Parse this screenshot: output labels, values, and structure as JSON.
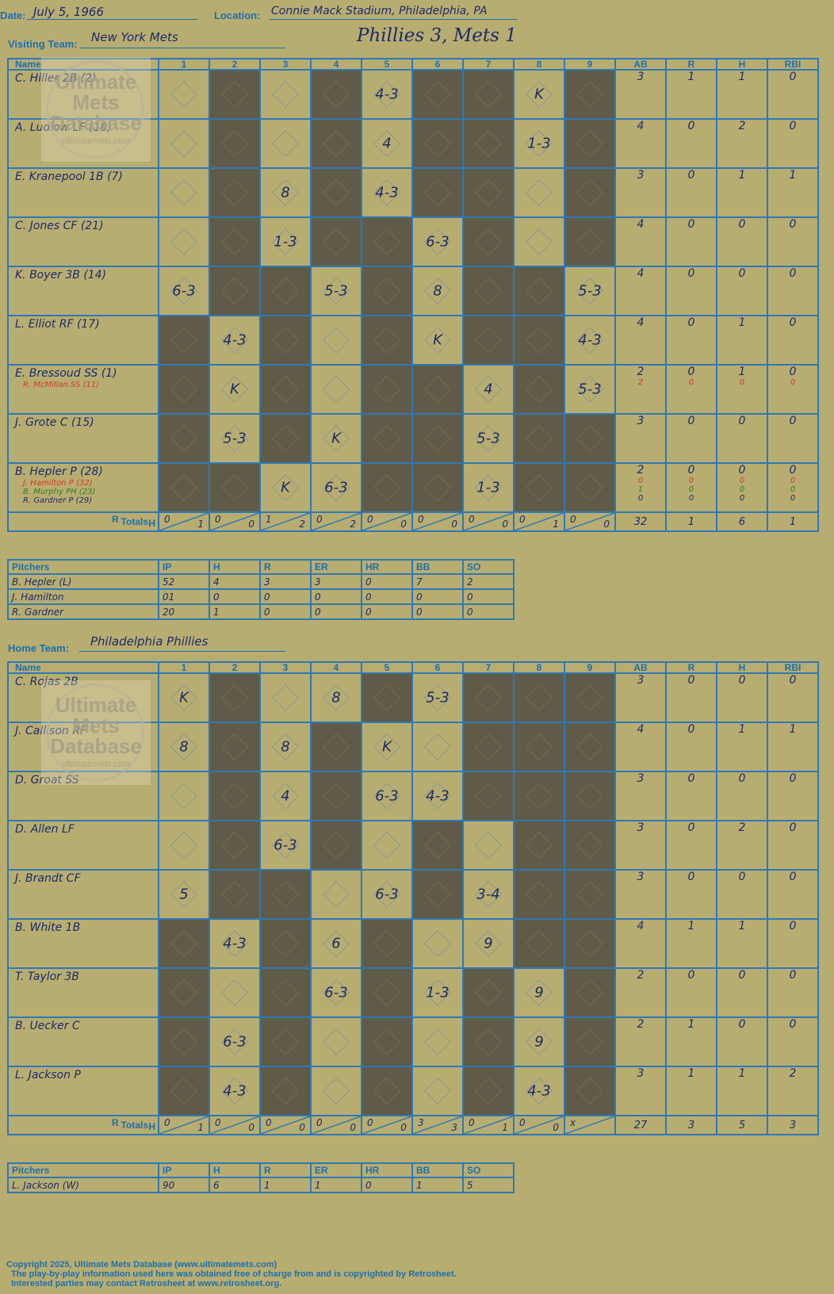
{
  "header": {
    "date_label": "Date:",
    "date": "July 5, 1966",
    "location_label": "Location:",
    "location": "Connie Mack Stadium, Philadelphia, PA",
    "visiting_label": "Visiting Team:",
    "visiting_team": "New York Mets",
    "home_label": "Home Team:",
    "home_team": "Philadelphia Phillies",
    "result": "Phillies 3, Mets 1"
  },
  "watermark": {
    "line1": "Ultimate",
    "line2": "Mets",
    "line3": "Database",
    "url": "ultimatemets.com"
  },
  "columns": {
    "name": "Name",
    "innings": [
      "1",
      "2",
      "3",
      "4",
      "5",
      "6",
      "7",
      "8",
      "9"
    ],
    "stats": [
      "AB",
      "R",
      "H",
      "RBI"
    ],
    "totals": "Totals:",
    "r": "R",
    "h": "H"
  },
  "pitcher_columns": [
    "Pitchers",
    "IP",
    "H",
    "R",
    "ER",
    "HR",
    "BB",
    "SO"
  ],
  "colors": {
    "background": "#b8ad70",
    "grid": "#2e78b7",
    "ink": "#1c2a6e",
    "red": "#d13a2a",
    "green": "#2e7a2e",
    "dark_cell": "#5f5b48"
  },
  "visitors": {
    "rows": [
      {
        "name": "C. Hiller 2B (2)",
        "subs": [],
        "dark": [
          1,
          3,
          5,
          6,
          8
        ],
        "marks": [
          "",
          "",
          "",
          "",
          "4-3",
          "",
          "",
          "K",
          ""
        ],
        "stats": [
          [
            "3"
          ],
          [
            "1"
          ],
          [
            "1"
          ],
          [
            "0"
          ]
        ]
      },
      {
        "name": "A. Ludlow LF (18)",
        "subs": [],
        "dark": [
          1,
          3,
          5,
          6,
          8
        ],
        "marks": [
          "",
          "",
          "",
          "",
          "4",
          "",
          "",
          "1-3",
          ""
        ],
        "stats": [
          [
            "4"
          ],
          [
            "0"
          ],
          [
            "2"
          ],
          [
            "0"
          ]
        ]
      },
      {
        "name": "E. Kranepool 1B (7)",
        "subs": [],
        "dark": [
          1,
          3,
          5,
          6,
          8
        ],
        "marks": [
          "",
          "",
          "8",
          "",
          "4-3",
          "",
          "",
          "",
          ""
        ],
        "stats": [
          [
            "3"
          ],
          [
            "0"
          ],
          [
            "1"
          ],
          [
            "1"
          ]
        ]
      },
      {
        "name": "C. Jones CF (21)",
        "subs": [],
        "dark": [
          1,
          3,
          4,
          6,
          8
        ],
        "marks": [
          "",
          "",
          "1-3",
          "",
          "",
          "6-3",
          "",
          "",
          ""
        ],
        "stats": [
          [
            "4"
          ],
          [
            "0"
          ],
          [
            "0"
          ],
          [
            "0"
          ]
        ]
      },
      {
        "name": "K. Boyer 3B (14)",
        "subs": [],
        "dark": [
          1,
          2,
          4,
          6,
          7
        ],
        "marks": [
          "6-3",
          "",
          "",
          "5-3",
          "",
          "8",
          "",
          "",
          "5-3"
        ],
        "stats": [
          [
            "4"
          ],
          [
            "0"
          ],
          [
            "0"
          ],
          [
            "0"
          ]
        ]
      },
      {
        "name": "L. Elliot RF (17)",
        "subs": [],
        "dark": [
          0,
          2,
          4,
          6,
          7
        ],
        "marks": [
          "",
          "4-3",
          "",
          "",
          "",
          "K",
          "",
          "",
          "4-3"
        ],
        "stats": [
          [
            "4"
          ],
          [
            "0"
          ],
          [
            "1"
          ],
          [
            "0"
          ]
        ]
      },
      {
        "name": "E. Bressoud SS (1)",
        "subs": [
          {
            "text": "R. McMillan SS (11)",
            "color": "#d13a2a"
          }
        ],
        "dark": [
          0,
          2,
          4,
          5,
          7
        ],
        "marks": [
          "",
          "K",
          "",
          "",
          "",
          "",
          "4",
          "",
          "5-3"
        ],
        "stats": [
          [
            "2",
            "2"
          ],
          [
            "0",
            "0"
          ],
          [
            "1",
            "0"
          ],
          [
            "0",
            "0"
          ]
        ]
      },
      {
        "name": "J. Grote C (15)",
        "subs": [],
        "dark": [
          0,
          2,
          4,
          5,
          7,
          8
        ],
        "marks": [
          "",
          "5-3",
          "",
          "K",
          "",
          "",
          "5-3",
          "",
          ""
        ],
        "stats": [
          [
            "3"
          ],
          [
            "0"
          ],
          [
            "0"
          ],
          [
            "0"
          ]
        ]
      },
      {
        "name": "B. Hepler P (28)",
        "subs": [
          {
            "text": "J. Hamilton P (32)",
            "color": "#d13a2a"
          },
          {
            "text": "B. Murphy PH (23)",
            "color": "#2e7a2e"
          },
          {
            "text": "R. Gardner P (29)",
            "color": "#1c2a6e"
          }
        ],
        "dark": [
          0,
          1,
          4,
          5,
          7,
          8
        ],
        "marks": [
          "",
          "",
          "K",
          "6-3",
          "",
          "",
          "1-3",
          "",
          ""
        ],
        "stats": [
          [
            "2",
            "0",
            "1",
            "0"
          ],
          [
            "0",
            "0",
            "0",
            "0"
          ],
          [
            "0",
            "0",
            "0",
            "0"
          ],
          [
            "0",
            "0",
            "0",
            "0"
          ]
        ]
      }
    ],
    "innings_r": [
      "0",
      "0",
      "1",
      "0",
      "0",
      "0",
      "0",
      "0",
      "0"
    ],
    "innings_h": [
      "1",
      "0",
      "2",
      "2",
      "0",
      "0",
      "0",
      "1",
      "0"
    ],
    "totals": [
      "32",
      "1",
      "6",
      "1"
    ],
    "pitchers": [
      [
        "B. Hepler (L)",
        "52",
        "4",
        "3",
        "3",
        "0",
        "7",
        "2"
      ],
      [
        "J. Hamilton",
        "01",
        "0",
        "0",
        "0",
        "0",
        "0",
        "0"
      ],
      [
        "R. Gardner",
        "20",
        "1",
        "0",
        "0",
        "0",
        "0",
        "0"
      ]
    ]
  },
  "home": {
    "rows": [
      {
        "name": "C. Rojas 2B",
        "subs": [],
        "dark": [
          1,
          4,
          6,
          7,
          8
        ],
        "marks": [
          "K",
          "",
          "",
          "8",
          "",
          "5-3",
          "",
          "",
          ""
        ],
        "stats": [
          [
            "3"
          ],
          [
            "0"
          ],
          [
            "0"
          ],
          [
            "0"
          ]
        ]
      },
      {
        "name": "J. Callison RF",
        "subs": [],
        "dark": [
          1,
          3,
          6,
          7,
          8
        ],
        "marks": [
          "8",
          "",
          "8",
          "",
          "K",
          "",
          "",
          "",
          ""
        ],
        "stats": [
          [
            "4"
          ],
          [
            "0"
          ],
          [
            "1"
          ],
          [
            "1"
          ]
        ]
      },
      {
        "name": "D. Groat SS",
        "subs": [],
        "dark": [
          1,
          3,
          6,
          7,
          8
        ],
        "marks": [
          "",
          "",
          "4",
          "",
          "6-3",
          "4-3",
          "",
          "",
          ""
        ],
        "stats": [
          [
            "3"
          ],
          [
            "0"
          ],
          [
            "0"
          ],
          [
            "0"
          ]
        ]
      },
      {
        "name": "D. Allen LF",
        "subs": [],
        "dark": [
          1,
          3,
          5,
          7,
          8
        ],
        "marks": [
          "",
          "",
          "6-3",
          "",
          "",
          "",
          "",
          "",
          ""
        ],
        "stats": [
          [
            "3"
          ],
          [
            "0"
          ],
          [
            "2"
          ],
          [
            "0"
          ]
        ]
      },
      {
        "name": "J. Brandt CF",
        "subs": [],
        "dark": [
          1,
          2,
          5,
          7,
          8
        ],
        "marks": [
          "5",
          "",
          "",
          "",
          "6-3",
          "",
          "3-4",
          "",
          ""
        ],
        "stats": [
          [
            "3"
          ],
          [
            "0"
          ],
          [
            "0"
          ],
          [
            "0"
          ]
        ]
      },
      {
        "name": "B. White 1B",
        "subs": [],
        "dark": [
          0,
          2,
          4,
          7,
          8
        ],
        "marks": [
          "",
          "4-3",
          "",
          "6",
          "",
          "",
          "9",
          "",
          ""
        ],
        "stats": [
          [
            "4"
          ],
          [
            "1"
          ],
          [
            "1"
          ],
          [
            "0"
          ]
        ]
      },
      {
        "name": "T. Taylor 3B",
        "subs": [],
        "dark": [
          0,
          2,
          4,
          6,
          8
        ],
        "marks": [
          "",
          "",
          "",
          "6-3",
          "",
          "1-3",
          "",
          "9",
          ""
        ],
        "stats": [
          [
            "2"
          ],
          [
            "0"
          ],
          [
            "0"
          ],
          [
            "0"
          ]
        ]
      },
      {
        "name": "B. Uecker C",
        "subs": [],
        "dark": [
          0,
          2,
          4,
          6,
          8
        ],
        "marks": [
          "",
          "6-3",
          "",
          "",
          "",
          "",
          "",
          "9",
          ""
        ],
        "stats": [
          [
            "2"
          ],
          [
            "1"
          ],
          [
            "0"
          ],
          [
            "0"
          ]
        ]
      },
      {
        "name": "L. Jackson P",
        "subs": [],
        "dark": [
          0,
          2,
          4,
          6,
          8
        ],
        "marks": [
          "",
          "4-3",
          "",
          "",
          "",
          "",
          "",
          "4-3",
          ""
        ],
        "stats": [
          [
            "3"
          ],
          [
            "1"
          ],
          [
            "1"
          ],
          [
            "2"
          ]
        ]
      }
    ],
    "innings_r": [
      "0",
      "0",
      "0",
      "0",
      "0",
      "3",
      "0",
      "0",
      "x"
    ],
    "innings_h": [
      "1",
      "0",
      "0",
      "0",
      "0",
      "3",
      "1",
      "0",
      ""
    ],
    "totals": [
      "27",
      "3",
      "5",
      "3"
    ],
    "pitchers": [
      [
        "L. Jackson (W)",
        "90",
        "6",
        "1",
        "1",
        "0",
        "1",
        "5"
      ]
    ]
  },
  "footer": {
    "line1": "Copyright 2025, Ultimate Mets Database (www.ultimatemets.com)",
    "line2": "The play-by-play information used here was obtained free of charge from and is copyrighted by Retrosheet.",
    "line3": "Interested parties may contact Retrosheet at www.retrosheet.org."
  }
}
